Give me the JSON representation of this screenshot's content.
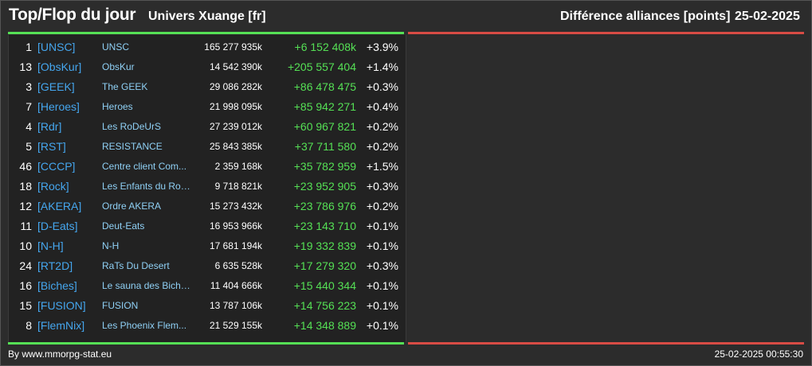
{
  "header": {
    "title": "Top/Flop du jour",
    "universe": "Univers Xuange [fr]",
    "metric": "Différence alliances [points]",
    "date": "25-02-2025"
  },
  "colors": {
    "top": "#55e055",
    "flop": "#d84c45",
    "tag": "#45a6ee",
    "name": "#8fd0f5"
  },
  "rows": [
    {
      "rank": "1",
      "tag": "[UNSC]",
      "name": "UNSC",
      "points": "165 277 935k",
      "diff": "+6 152 408k",
      "pct": "+3.9%"
    },
    {
      "rank": "13",
      "tag": "[ObsKur]",
      "name": "ObsKur",
      "points": "14 542 390k",
      "diff": "+205 557 404",
      "pct": "+1.4%"
    },
    {
      "rank": "3",
      "tag": "[GEEK]",
      "name": "The GEEK",
      "points": "29 086 282k",
      "diff": "+86 478 475",
      "pct": "+0.3%"
    },
    {
      "rank": "7",
      "tag": "[Heroes]",
      "name": "Heroes",
      "points": "21 998 095k",
      "diff": "+85 942 271",
      "pct": "+0.4%"
    },
    {
      "rank": "4",
      "tag": "[Rdr]",
      "name": "Les RoDeUrS",
      "points": "27 239 012k",
      "diff": "+60 967 821",
      "pct": "+0.2%"
    },
    {
      "rank": "5",
      "tag": "[RST]",
      "name": "RESISTANCE",
      "points": "25 843 385k",
      "diff": "+37 711 580",
      "pct": "+0.2%"
    },
    {
      "rank": "46",
      "tag": "[CCCP]",
      "name": "Centre client Com...",
      "points": "2 359 168k",
      "diff": "+35 782 959",
      "pct": "+1.5%"
    },
    {
      "rank": "18",
      "tag": "[Rock]",
      "name": "Les Enfants du Roc...",
      "points": "9 718 821k",
      "diff": "+23 952 905",
      "pct": "+0.3%"
    },
    {
      "rank": "12",
      "tag": "[AKERA]",
      "name": "Ordre AKERA",
      "points": "15 273 432k",
      "diff": "+23 786 976",
      "pct": "+0.2%"
    },
    {
      "rank": "11",
      "tag": "[D-Eats]",
      "name": "Deut-Eats",
      "points": "16 953 966k",
      "diff": "+23 143 710",
      "pct": "+0.1%"
    },
    {
      "rank": "10",
      "tag": "[N-H]",
      "name": "N-H",
      "points": "17 681 194k",
      "diff": "+19 332 839",
      "pct": "+0.1%"
    },
    {
      "rank": "24",
      "tag": "[RT2D]",
      "name": "RaTs Du Desert",
      "points": "6 635 528k",
      "diff": "+17 279 320",
      "pct": "+0.3%"
    },
    {
      "rank": "16",
      "tag": "[Biches]",
      "name": "Le sauna des Biche...",
      "points": "11 404 666k",
      "diff": "+15 440 344",
      "pct": "+0.1%"
    },
    {
      "rank": "15",
      "tag": "[FUSION]",
      "name": "FUSION",
      "points": "13 787 106k",
      "diff": "+14 756 223",
      "pct": "+0.1%"
    },
    {
      "rank": "8",
      "tag": "[FlemNix]",
      "name": "Les Phoenix Flem...",
      "points": "21 529 155k",
      "diff": "+14 348 889",
      "pct": "+0.1%"
    }
  ],
  "footer": {
    "credit": "By www.mmorpg-stat.eu",
    "timestamp": "25-02-2025 00:55:30"
  }
}
